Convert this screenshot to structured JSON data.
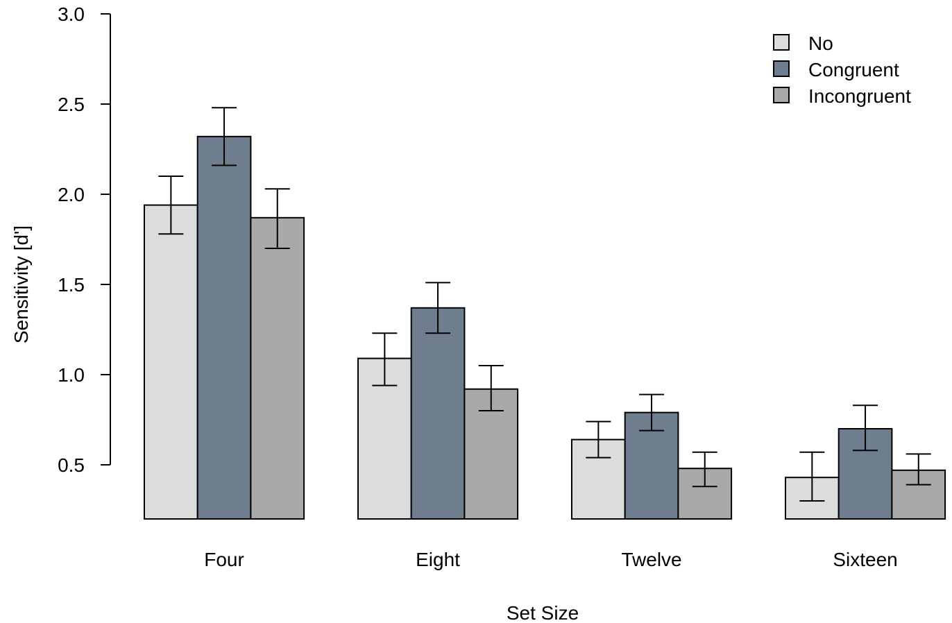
{
  "chart_data": {
    "type": "bar",
    "xlabel": "Set Size",
    "ylabel": "Sensitivity [d']",
    "ylim": [
      0.2,
      3.0
    ],
    "yticks": [
      "3.0",
      "2.5",
      "2.0",
      "1.5",
      "1.0",
      "0.5"
    ],
    "ytick_values": [
      3.0,
      2.5,
      2.0,
      1.5,
      1.0,
      0.5
    ],
    "categories": [
      "Four",
      "Eight",
      "Twelve",
      "Sixteen"
    ],
    "series": [
      {
        "name": "No",
        "color": "#dcdcdc",
        "values": [
          1.94,
          1.09,
          0.64,
          0.43
        ],
        "err_low": [
          1.78,
          0.94,
          0.54,
          0.3
        ],
        "err_high": [
          2.1,
          1.23,
          0.74,
          0.57
        ]
      },
      {
        "name": "Congruent",
        "color": "#6e7e8e",
        "values": [
          2.32,
          1.37,
          0.79,
          0.7
        ],
        "err_low": [
          2.16,
          1.23,
          0.69,
          0.58
        ],
        "err_high": [
          2.48,
          1.51,
          0.89,
          0.83
        ]
      },
      {
        "name": "Incongruent",
        "color": "#a9a9a9",
        "values": [
          1.87,
          0.92,
          0.48,
          0.47
        ],
        "err_low": [
          1.7,
          0.8,
          0.38,
          0.39
        ],
        "err_high": [
          2.03,
          1.05,
          0.57,
          0.56
        ]
      }
    ],
    "legend_position": "top-right",
    "grid": false
  }
}
